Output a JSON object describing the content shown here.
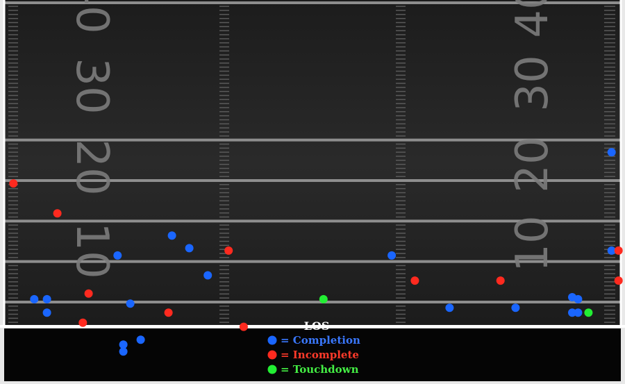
{
  "chart_data": {
    "type": "scatter",
    "title": "",
    "xlabel": "",
    "ylabel": "",
    "grid": true,
    "legend_placement": "bottom-center",
    "colors": {
      "Completion": "#1a66ff",
      "Incomplete": "#ff2a1f",
      "Touchdown": "#22ee33",
      "field": "#1e1e1e",
      "yard_line": "#8e8e8e",
      "los_line": "#ffffff",
      "legend_completion_text": "#3a78ff",
      "legend_incomplete_text": "#ff3a2a",
      "legend_touchdown_text": "#44ee44"
    },
    "los_label": "LOS",
    "yard_markers_left": [
      "10",
      "20",
      "30",
      "40"
    ],
    "yard_markers_right": [
      "10",
      "20",
      "30",
      "40"
    ],
    "legend": [
      {
        "symbol": "●",
        "text": "= Completion",
        "series": "Completion"
      },
      {
        "symbol": "●",
        "text": "= Incomplete",
        "series": "Incomplete"
      },
      {
        "symbol": "●",
        "text": "= Touchdown",
        "series": "Touchdown"
      }
    ],
    "xlim": [
      0,
      53.3
    ],
    "ylim": [
      -10,
      50
    ],
    "series": [
      {
        "name": "Completion",
        "points": [
          {
            "x": 52.5,
            "y": 43.0
          },
          {
            "x": 14.5,
            "y": 22.4
          },
          {
            "x": 16.0,
            "y": 19.3
          },
          {
            "x": 9.8,
            "y": 17.5
          },
          {
            "x": 33.5,
            "y": 17.5
          },
          {
            "x": 52.5,
            "y": 18.7
          },
          {
            "x": 17.6,
            "y": 12.6
          },
          {
            "x": 2.6,
            "y": 6.7
          },
          {
            "x": 3.7,
            "y": 6.7
          },
          {
            "x": 10.9,
            "y": 5.6
          },
          {
            "x": 49.1,
            "y": 7.2
          },
          {
            "x": 49.6,
            "y": 6.7
          },
          {
            "x": 38.5,
            "y": 4.6
          },
          {
            "x": 44.2,
            "y": 4.6
          },
          {
            "x": 3.7,
            "y": 3.4
          },
          {
            "x": 49.1,
            "y": 3.4
          },
          {
            "x": 49.6,
            "y": 3.4
          },
          {
            "x": 11.8,
            "y": -3.3
          },
          {
            "x": 10.3,
            "y": -4.5
          },
          {
            "x": 10.3,
            "y": -6.2
          }
        ]
      },
      {
        "name": "Incomplete",
        "points": [
          {
            "x": 0.8,
            "y": 35.3
          },
          {
            "x": 4.6,
            "y": 27.9
          },
          {
            "x": 19.4,
            "y": 18.7
          },
          {
            "x": 53.1,
            "y": 18.7
          },
          {
            "x": 35.5,
            "y": 11.3
          },
          {
            "x": 42.9,
            "y": 11.3
          },
          {
            "x": 53.1,
            "y": 11.3
          },
          {
            "x": 7.3,
            "y": 8.1
          },
          {
            "x": 14.2,
            "y": 3.4
          },
          {
            "x": 6.8,
            "y": 0.9
          },
          {
            "x": 20.7,
            "y": -0.1
          }
        ]
      },
      {
        "name": "Touchdown",
        "points": [
          {
            "x": 27.6,
            "y": 6.7
          },
          {
            "x": 50.5,
            "y": 3.4
          }
        ]
      }
    ]
  }
}
